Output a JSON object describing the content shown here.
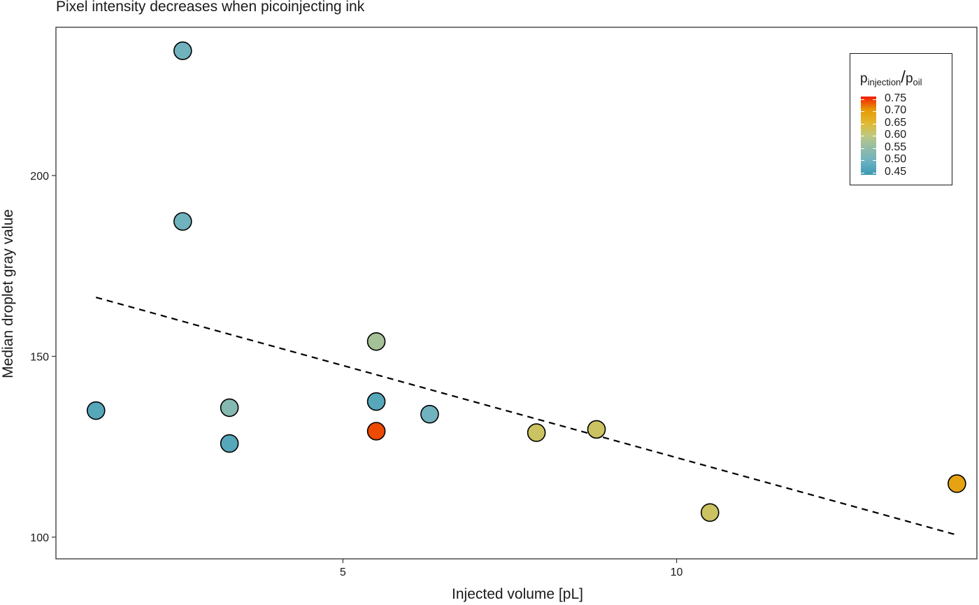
{
  "chart_data": {
    "type": "scatter",
    "title": "Pixel intensity decreases when picoinjecting ink",
    "xlabel": "Injected volume [pL]",
    "ylabel": "Median droplet gray value",
    "xlim": [
      0.7,
      14.5
    ],
    "ylim": [
      94,
      241
    ],
    "x_ticks": [
      5,
      10
    ],
    "y_ticks": [
      100,
      150,
      200
    ],
    "grid": false,
    "points": [
      {
        "x": 2.6,
        "y": 234.5,
        "color_value": 0.5
      },
      {
        "x": 2.6,
        "y": 187.3,
        "color_value": 0.5
      },
      {
        "x": 1.3,
        "y": 135.0,
        "color_value": 0.47
      },
      {
        "x": 3.3,
        "y": 135.8,
        "color_value": 0.53
      },
      {
        "x": 3.3,
        "y": 125.9,
        "color_value": 0.47
      },
      {
        "x": 5.5,
        "y": 154.1,
        "color_value": 0.57
      },
      {
        "x": 5.5,
        "y": 137.5,
        "color_value": 0.47
      },
      {
        "x": 5.5,
        "y": 129.3,
        "color_value": 0.74
      },
      {
        "x": 6.3,
        "y": 134.0,
        "color_value": 0.5
      },
      {
        "x": 7.9,
        "y": 128.9,
        "color_value": 0.62
      },
      {
        "x": 8.8,
        "y": 129.8,
        "color_value": 0.62
      },
      {
        "x": 10.5,
        "y": 106.8,
        "color_value": 0.62
      },
      {
        "x": 14.2,
        "y": 114.8,
        "color_value": 0.69
      }
    ],
    "trend_line": {
      "x": [
        1.3,
        14.2
      ],
      "y": [
        166.3,
        100.6
      ],
      "style": "dashed"
    },
    "colorbar": {
      "title_main": "p",
      "title_sub1": "injection",
      "title_sep": "/",
      "title_sub2": "oil",
      "ticks": [
        "0.75",
        "0.70",
        "0.65",
        "0.60",
        "0.55",
        "0.50",
        "0.45"
      ],
      "range": [
        0.44,
        0.76
      ],
      "colors": [
        "#3a9ab2",
        "#6bb1c1",
        "#91bba8",
        "#bdc881",
        "#e2b72f",
        "#e79805",
        "#f11b00"
      ]
    },
    "legend_placement": "top-right"
  }
}
